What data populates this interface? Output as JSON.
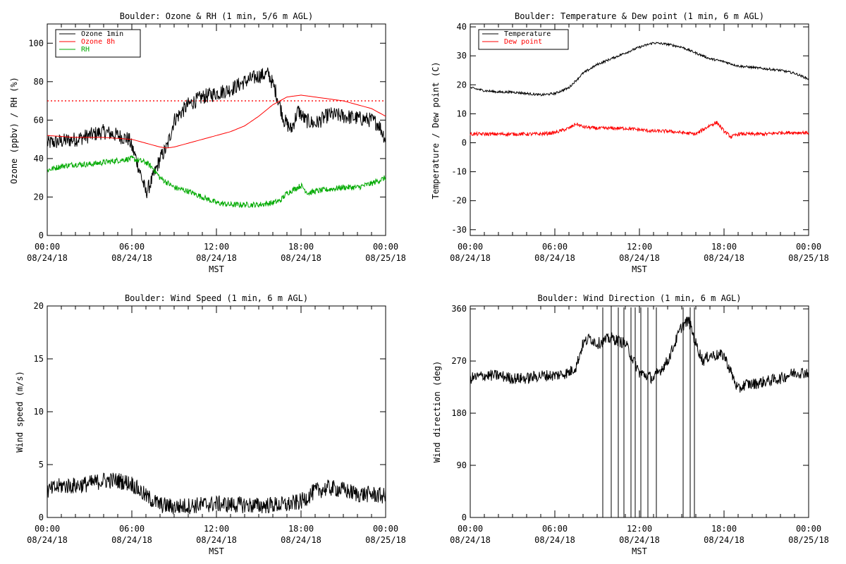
{
  "chart_data": [
    {
      "type": "line",
      "title": "Boulder: Ozone & RH (1 min, 5/6 m AGL)",
      "ylabel": "Ozone (ppbv) / RH (%)",
      "xlabel": "MST",
      "xlim": [
        0,
        24
      ],
      "ylim": [
        0,
        110
      ],
      "yticks": [
        0,
        20,
        40,
        60,
        80,
        100
      ],
      "xticks": [
        {
          "h": 0,
          "l1": "00:00",
          "l2": "08/24/18"
        },
        {
          "h": 6,
          "l1": "06:00",
          "l2": "08/24/18"
        },
        {
          "h": 12,
          "l1": "12:00",
          "l2": "08/24/18"
        },
        {
          "h": 18,
          "l1": "18:00",
          "l2": "08/24/18"
        },
        {
          "h": 24,
          "l1": "00:00",
          "l2": "08/25/18"
        }
      ],
      "reference_line": {
        "y": 70,
        "color": "#ff0000",
        "style": "dotted"
      },
      "legend": {
        "position": "top-left",
        "items": [
          {
            "name": "Ozone 1min",
            "color": "#000000"
          },
          {
            "name": "Ozone 8h",
            "color": "#ff0000"
          },
          {
            "name": "RH",
            "color": "#00aa00"
          }
        ]
      },
      "series": [
        {
          "name": "Ozone 1min",
          "color": "#000000",
          "noise": 4,
          "x": [
            0,
            1,
            2,
            3,
            4,
            5,
            5.8,
            6.3,
            6.7,
            7.0,
            7.5,
            8.0,
            8.5,
            9.0,
            10,
            11,
            12,
            13,
            14,
            15,
            15.7,
            16.2,
            16.8,
            17.3,
            17.8,
            18.3,
            19,
            20,
            21,
            22,
            23,
            23.5,
            24
          ],
          "y": [
            48,
            49,
            50,
            52,
            54,
            52,
            50,
            40,
            30,
            22,
            30,
            40,
            46,
            60,
            68,
            72,
            74,
            76,
            80,
            83,
            84,
            75,
            60,
            55,
            65,
            60,
            58,
            63,
            62,
            61,
            60,
            58,
            50
          ]
        },
        {
          "name": "Ozone 8h",
          "color": "#ff0000",
          "noise": 0,
          "x": [
            0,
            2,
            4,
            6,
            7,
            8,
            8.5,
            9,
            10,
            11,
            12,
            13,
            14,
            15,
            16,
            17,
            18,
            19,
            20,
            21,
            22,
            23,
            24
          ],
          "y": [
            52,
            51,
            51,
            50,
            48,
            46,
            45.5,
            46,
            48,
            50,
            52,
            54,
            57,
            62,
            68,
            72,
            73,
            72,
            71,
            70,
            68,
            66,
            62
          ]
        },
        {
          "name": "RH",
          "color": "#00aa00",
          "noise": 1.5,
          "x": [
            0,
            1,
            2,
            3,
            4,
            5,
            6,
            7,
            7.5,
            8,
            9,
            10,
            11,
            12,
            13,
            14,
            15,
            16,
            16.5,
            17,
            17.5,
            18,
            18.5,
            19,
            20,
            21,
            22,
            23,
            24
          ],
          "y": [
            34,
            36,
            37,
            37,
            38,
            39,
            40,
            38,
            35,
            30,
            25,
            23,
            20,
            17,
            16,
            16,
            16,
            17,
            18,
            22,
            24,
            26,
            22,
            23,
            24,
            25,
            25,
            27,
            30
          ]
        }
      ]
    },
    {
      "type": "line",
      "title": "Boulder: Temperature & Dew point (1 min, 6 m AGL)",
      "ylabel": "Temperature / Dew point (C)",
      "xlabel": "MST",
      "xlim": [
        0,
        24
      ],
      "ylim": [
        -32,
        41
      ],
      "yticks": [
        -30,
        -20,
        -10,
        0,
        10,
        20,
        30,
        40
      ],
      "xticks": [
        {
          "h": 0,
          "l1": "00:00",
          "l2": "08/24/18"
        },
        {
          "h": 6,
          "l1": "06:00",
          "l2": "08/24/18"
        },
        {
          "h": 12,
          "l1": "12:00",
          "l2": "08/24/18"
        },
        {
          "h": 18,
          "l1": "18:00",
          "l2": "08/24/18"
        },
        {
          "h": 24,
          "l1": "00:00",
          "l2": "08/25/18"
        }
      ],
      "legend": {
        "position": "top-left",
        "items": [
          {
            "name": "Temperature",
            "color": "#000000"
          },
          {
            "name": "Dew point",
            "color": "#ff0000"
          }
        ]
      },
      "series": [
        {
          "name": "Temperature",
          "color": "#000000",
          "noise": 0.4,
          "x": [
            0,
            1,
            2,
            3,
            4,
            5,
            6,
            7,
            8,
            9,
            10,
            11,
            12,
            13,
            14,
            15,
            16,
            17,
            18,
            19,
            20,
            21,
            22,
            23,
            24
          ],
          "y": [
            19,
            18,
            17.5,
            17.5,
            17,
            16.5,
            17,
            19,
            24,
            27,
            29,
            31,
            33,
            34.5,
            34,
            33,
            31,
            29,
            28,
            26.5,
            26,
            25.5,
            25,
            24,
            22
          ]
        },
        {
          "name": "Dew point",
          "color": "#ff0000",
          "noise": 0.6,
          "x": [
            0,
            1,
            2,
            3,
            4,
            5,
            6,
            7,
            7.5,
            8,
            9,
            10,
            11,
            12,
            13,
            14,
            15,
            16,
            17,
            17.5,
            18,
            18.5,
            19,
            20,
            21,
            22,
            23,
            24
          ],
          "y": [
            3,
            3,
            3,
            3,
            3,
            3,
            3.5,
            5,
            6.5,
            5.5,
            5,
            5,
            5,
            4.5,
            4,
            4,
            3.5,
            3,
            6,
            7,
            4,
            2,
            3,
            3,
            3,
            3.5,
            3.5,
            3.5
          ]
        }
      ]
    },
    {
      "type": "line",
      "title": "Boulder: Wind Speed (1 min, 6 m AGL)",
      "ylabel": "Wind speed (m/s)",
      "xlabel": "MST",
      "xlim": [
        0,
        24
      ],
      "ylim": [
        0,
        20
      ],
      "yticks": [
        0,
        5,
        10,
        15,
        20
      ],
      "xticks": [
        {
          "h": 0,
          "l1": "00:00",
          "l2": "08/24/18"
        },
        {
          "h": 6,
          "l1": "06:00",
          "l2": "08/24/18"
        },
        {
          "h": 12,
          "l1": "12:00",
          "l2": "08/24/18"
        },
        {
          "h": 18,
          "l1": "18:00",
          "l2": "08/24/18"
        },
        {
          "h": 24,
          "l1": "00:00",
          "l2": "08/25/18"
        }
      ],
      "series": [
        {
          "name": "",
          "color": "#000000",
          "noise": 0.8,
          "x": [
            0,
            1,
            2,
            3,
            4,
            5,
            6,
            7,
            8,
            9,
            10,
            11,
            12,
            13,
            14,
            15,
            16,
            17,
            18,
            19,
            20,
            21,
            22,
            23,
            24
          ],
          "y": [
            2.5,
            3,
            3,
            3.2,
            3.5,
            3.5,
            3.2,
            2,
            1.2,
            1,
            1.1,
            1.2,
            1.3,
            1.2,
            1.2,
            1.1,
            1.2,
            1.2,
            1.5,
            2.5,
            2.8,
            2.6,
            2.2,
            2.2,
            2
          ]
        }
      ]
    },
    {
      "type": "line",
      "title": "Boulder: Wind Direction (1 min, 6 m AGL)",
      "ylabel": "Wind direction (deg)",
      "xlabel": "MST",
      "xlim": [
        0,
        24
      ],
      "ylim": [
        0,
        365
      ],
      "yticks": [
        0,
        90,
        180,
        270,
        360
      ],
      "xticks": [
        {
          "h": 0,
          "l1": "00:00",
          "l2": "08/24/18"
        },
        {
          "h": 6,
          "l1": "06:00",
          "l2": "08/24/18"
        },
        {
          "h": 12,
          "l1": "12:00",
          "l2": "08/24/18"
        },
        {
          "h": 18,
          "l1": "18:00",
          "l2": "08/24/18"
        },
        {
          "h": 24,
          "l1": "00:00",
          "l2": "08/25/18"
        }
      ],
      "series": [
        {
          "name": "",
          "color": "#000000",
          "noise": 10,
          "x": [
            0,
            1,
            2,
            3,
            4,
            5,
            6,
            7,
            7.5,
            8,
            8.5,
            9,
            10,
            11,
            12,
            13,
            14,
            15,
            15.5,
            16,
            16.5,
            17,
            18,
            18.5,
            19,
            19.5,
            20,
            21,
            22,
            23,
            24
          ],
          "y": [
            240,
            245,
            245,
            240,
            240,
            245,
            245,
            250,
            260,
            300,
            310,
            300,
            310,
            300,
            250,
            240,
            270,
            330,
            340,
            300,
            270,
            280,
            280,
            250,
            220,
            230,
            230,
            235,
            240,
            250,
            250
          ]
        },
        {
          "name": "",
          "color": "#000000",
          "noise": 0,
          "spikes": true,
          "x": [
            9.4,
            10.0,
            10.5,
            10.9,
            11.4,
            11.7,
            12.1,
            12.6,
            13.2,
            15.1,
            15.6,
            15.9
          ],
          "y": [
            0,
            0,
            0,
            0,
            0,
            0,
            0,
            0,
            0,
            0,
            0,
            0
          ]
        }
      ]
    }
  ]
}
